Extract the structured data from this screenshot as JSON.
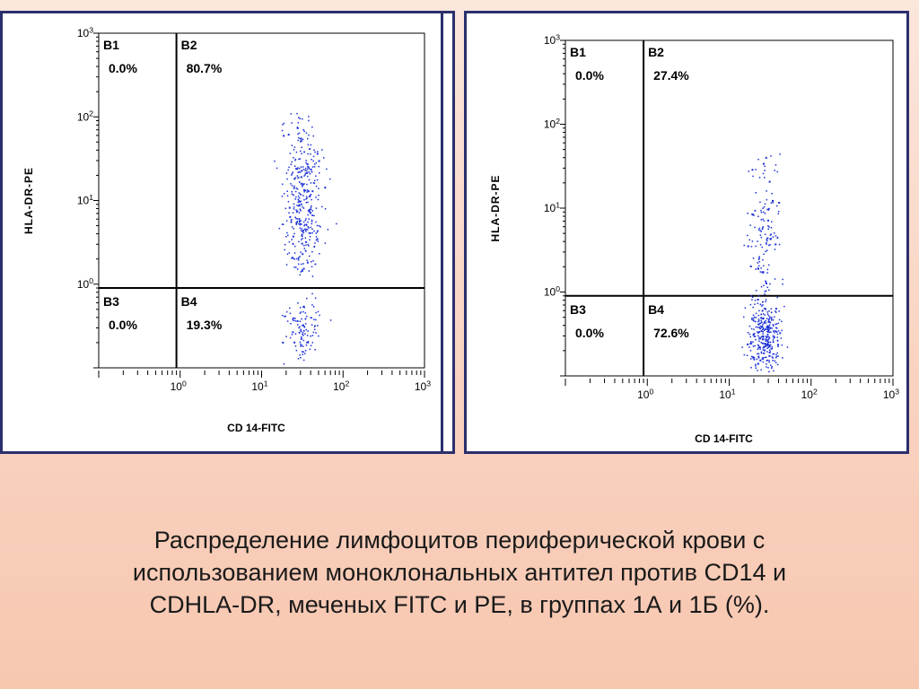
{
  "chart_data": [
    {
      "type": "scatter",
      "xlabel": "CD 14-FITC",
      "ylabel": "HLA-DR-PE",
      "scale": "log",
      "xlim": [
        0.1,
        1000
      ],
      "ylim": [
        0.1,
        1000
      ],
      "x_ticks": [
        "10^0",
        "10^1",
        "10^2",
        "10^3"
      ],
      "y_ticks": [
        "10^0",
        "10^1",
        "10^2",
        "10^3"
      ],
      "quadrant_divider": {
        "x": 0.9,
        "y": 0.9
      },
      "quadrants": [
        {
          "name": "B1",
          "value": "0.0%"
        },
        {
          "name": "B2",
          "value": "80.7%"
        },
        {
          "name": "B3",
          "value": "0.0%"
        },
        {
          "name": "B4",
          "value": "19.3%"
        }
      ],
      "point_color": "#1a2fd6",
      "clusters": [
        {
          "x_log_center": 1.5,
          "x_log_spread": 0.11,
          "y_log_min": 0.1,
          "y_log_max": 2.05,
          "y_log_center": 1.05,
          "count": 380
        },
        {
          "x_log_center": 1.5,
          "x_log_spread": 0.11,
          "y_log_min": -0.95,
          "y_log_max": -0.1,
          "y_log_center": -0.55,
          "count": 110
        }
      ]
    },
    {
      "type": "scatter",
      "xlabel": "CD 14-FITC",
      "ylabel": "HLA-DR-PE",
      "scale": "log",
      "xlim": [
        0.1,
        1000
      ],
      "ylim": [
        0.1,
        1000
      ],
      "x_ticks": [
        "10^0",
        "10^1",
        "10^2",
        "10^3"
      ],
      "y_ticks": [
        "10^0",
        "10^1",
        "10^2",
        "10^3"
      ],
      "quadrant_divider": {
        "x": 0.9,
        "y": 0.9
      },
      "quadrants": [
        {
          "name": "B1",
          "value": "0.0%"
        },
        {
          "name": "B2",
          "value": "27.4%"
        },
        {
          "name": "B3",
          "value": "0.0%"
        },
        {
          "name": "B4",
          "value": "72.6%"
        }
      ],
      "point_color": "#1a2fd6",
      "clusters": [
        {
          "x_log_center": 1.42,
          "x_log_spread": 0.1,
          "y_log_min": -0.05,
          "y_log_max": 1.7,
          "y_log_center": 0.7,
          "count": 140
        },
        {
          "x_log_center": 1.42,
          "x_log_spread": 0.1,
          "y_log_min": -0.95,
          "y_log_max": -0.05,
          "y_log_center": -0.5,
          "count": 330
        }
      ]
    }
  ],
  "caption": {
    "lines": [
      "Распределение лимфоцитов периферической крови с",
      "использованием моноклональных антител против CD14 и",
      "CDHLA-DR, меченых FITC и PE, в группах 1А и 1Б (%)."
    ]
  }
}
